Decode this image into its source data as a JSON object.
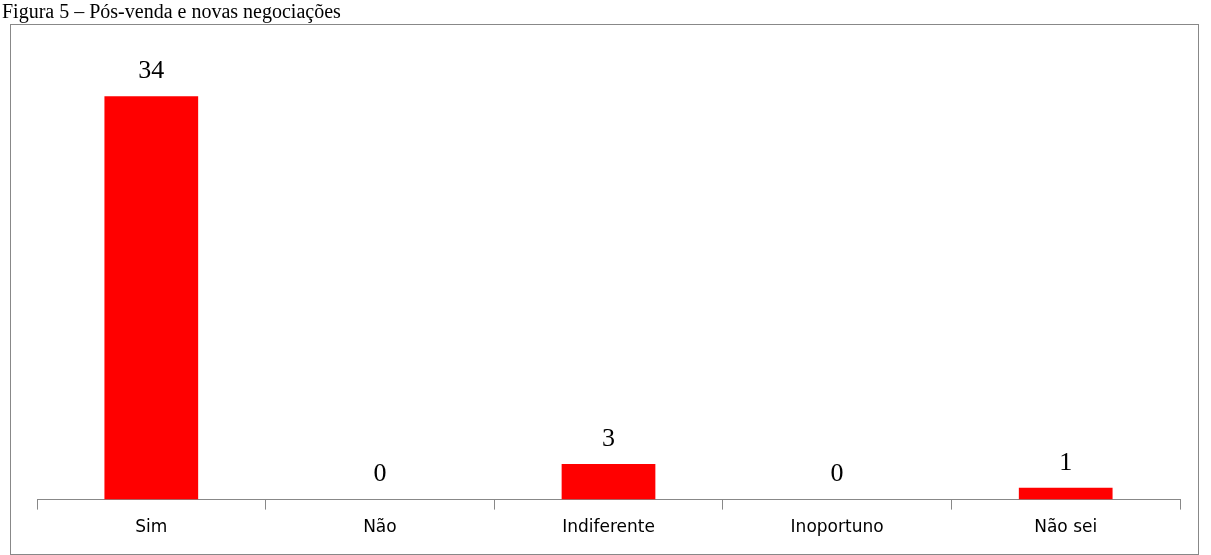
{
  "chart_data": {
    "type": "bar",
    "title": "Figura 5 – Pós-venda e novas negociações",
    "categories": [
      "Sim",
      "Não",
      "Indiferente",
      "Inoportuno",
      "Não sei"
    ],
    "values": [
      34,
      0,
      3,
      0,
      1
    ],
    "color": "#ff0000",
    "data_labels": true,
    "grid": false,
    "legend": false
  }
}
